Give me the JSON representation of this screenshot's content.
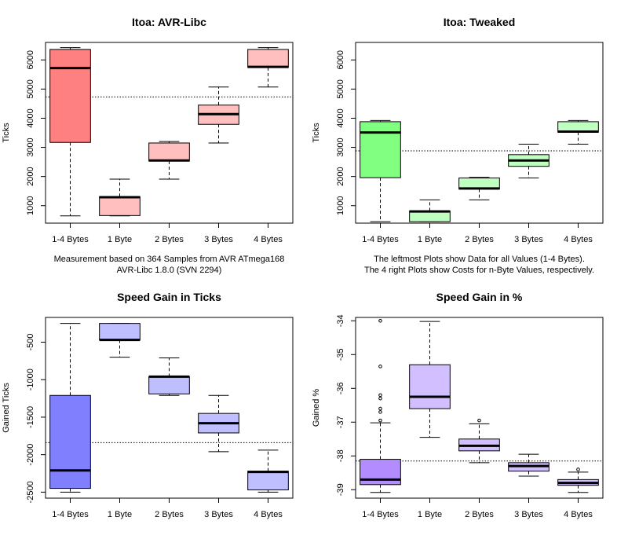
{
  "chart_data": [
    {
      "type": "boxplot",
      "title": "Itoa: AVR-Libc",
      "ylabel": "Ticks",
      "ylim": [
        400,
        6600
      ],
      "yticks": [
        1000,
        2000,
        3000,
        4000,
        5000,
        6000
      ],
      "categories": [
        "1-4 Bytes",
        "1 Byte",
        "2 Bytes",
        "3 Bytes",
        "4 Bytes"
      ],
      "colors": [
        "#ff8080",
        "#ffbfbf",
        "#ffbfbf",
        "#ffbfbf",
        "#ffbfbf"
      ],
      "boxes": [
        {
          "whisker_low": 650,
          "q1": 3170,
          "median": 5720,
          "q3": 6360,
          "whisker_high": 6420,
          "outliers": []
        },
        {
          "whisker_low": 650,
          "q1": 660,
          "median": 1290,
          "q3": 1310,
          "whisker_high": 1910,
          "outliers": []
        },
        {
          "whisker_low": 1910,
          "q1": 2530,
          "median": 2550,
          "q3": 3150,
          "whisker_high": 3200,
          "outliers": []
        },
        {
          "whisker_low": 3150,
          "q1": 3790,
          "median": 4140,
          "q3": 4450,
          "whisker_high": 5070,
          "outliers": []
        },
        {
          "whisker_low": 5070,
          "q1": 5740,
          "median": 5760,
          "q3": 6360,
          "whisker_high": 6420,
          "outliers": []
        }
      ],
      "hline": 4730,
      "notes": [
        "Measurement based on 364 Samples from AVR ATmega168",
        "AVR-Libc 1.8.0 (SVN 2294)"
      ]
    },
    {
      "type": "boxplot",
      "title": "Itoa: Tweaked",
      "ylabel": "Ticks",
      "ylim": [
        400,
        6600
      ],
      "yticks": [
        1000,
        2000,
        3000,
        4000,
        5000,
        6000
      ],
      "categories": [
        "1-4 Bytes",
        "1 Byte",
        "2 Bytes",
        "3 Bytes",
        "4 Bytes"
      ],
      "colors": [
        "#80ff80",
        "#bfffbf",
        "#bfffbf",
        "#bfffbf",
        "#bfffbf"
      ],
      "boxes": [
        {
          "whisker_low": 450,
          "q1": 1960,
          "median": 3510,
          "q3": 3880,
          "whisker_high": 3920,
          "outliers": []
        },
        {
          "whisker_low": 450,
          "q1": 450,
          "median": 800,
          "q3": 820,
          "whisker_high": 1200,
          "outliers": []
        },
        {
          "whisker_low": 1200,
          "q1": 1570,
          "median": 1590,
          "q3": 1950,
          "whisker_high": 1970,
          "outliers": []
        },
        {
          "whisker_low": 1950,
          "q1": 2350,
          "median": 2550,
          "q3": 2750,
          "whisker_high": 3110,
          "outliers": []
        },
        {
          "whisker_low": 3110,
          "q1": 3520,
          "median": 3540,
          "q3": 3880,
          "whisker_high": 3920,
          "outliers": []
        }
      ],
      "hline": 2880,
      "notes": [
        "The leftmost Plots show Data for all Values (1-4 Bytes).",
        "The 4 right Plots show Costs for n-Byte Values, respectively."
      ]
    },
    {
      "type": "boxplot",
      "title": "Speed Gain in Ticks",
      "ylabel": "Gained Ticks",
      "ylim": [
        -2580,
        -170
      ],
      "yticks": [
        -2500,
        -2000,
        -1500,
        -1000,
        -500
      ],
      "categories": [
        "1-4 Bytes",
        "1 Byte",
        "2 Bytes",
        "3 Bytes",
        "4 Bytes"
      ],
      "colors": [
        "#8080ff",
        "#bfbfff",
        "#bfbfff",
        "#bfbfff",
        "#bfbfff"
      ],
      "boxes": [
        {
          "whisker_low": -2500,
          "q1": -2450,
          "median": -2210,
          "q3": -1210,
          "whisker_high": -250,
          "outliers": []
        },
        {
          "whisker_low": -700,
          "q1": -470,
          "median": -470,
          "q3": -250,
          "whisker_high": -250,
          "outliers": []
        },
        {
          "whisker_low": -1210,
          "q1": -1190,
          "median": -960,
          "q3": -960,
          "whisker_high": -710,
          "outliers": []
        },
        {
          "whisker_low": -1960,
          "q1": -1710,
          "median": -1580,
          "q3": -1450,
          "whisker_high": -1210,
          "outliers": []
        },
        {
          "whisker_low": -2500,
          "q1": -2470,
          "median": -2230,
          "q3": -2220,
          "whisker_high": -1940,
          "outliers": []
        }
      ],
      "hline": -1840
    },
    {
      "type": "boxplot",
      "title": "Speed Gain in %",
      "ylabel": "Gained %",
      "ylim": [
        -39.25,
        -33.9
      ],
      "yticks": [
        -39,
        -38,
        -37,
        -36,
        -35,
        -34
      ],
      "categories": [
        "1-4 Bytes",
        "1 Byte",
        "2 Bytes",
        "3 Bytes",
        "4 Bytes"
      ],
      "colors": [
        "#b38cff",
        "#d2bfff",
        "#d2bfff",
        "#d2bfff",
        "#d2bfff"
      ],
      "boxes": [
        {
          "whisker_low": -39.08,
          "q1": -38.85,
          "median": -38.7,
          "q3": -38.1,
          "whisker_high": -37.02,
          "outliers": [
            -34.0,
            -35.35,
            -36.2,
            -36.3,
            -36.6,
            -36.7,
            -36.95
          ]
        },
        {
          "whisker_low": -37.45,
          "q1": -36.6,
          "median": -36.25,
          "q3": -35.3,
          "whisker_high": -34.02,
          "outliers": []
        },
        {
          "whisker_low": -38.2,
          "q1": -37.85,
          "median": -37.7,
          "q3": -37.5,
          "whisker_high": -37.05,
          "outliers": [
            -36.95
          ]
        },
        {
          "whisker_low": -38.6,
          "q1": -38.45,
          "median": -38.3,
          "q3": -38.2,
          "whisker_high": -37.95,
          "outliers": []
        },
        {
          "whisker_low": -39.08,
          "q1": -38.87,
          "median": -38.8,
          "q3": -38.7,
          "whisker_high": -38.48,
          "outliers": [
            -38.4
          ]
        }
      ],
      "hline": -38.15
    }
  ]
}
